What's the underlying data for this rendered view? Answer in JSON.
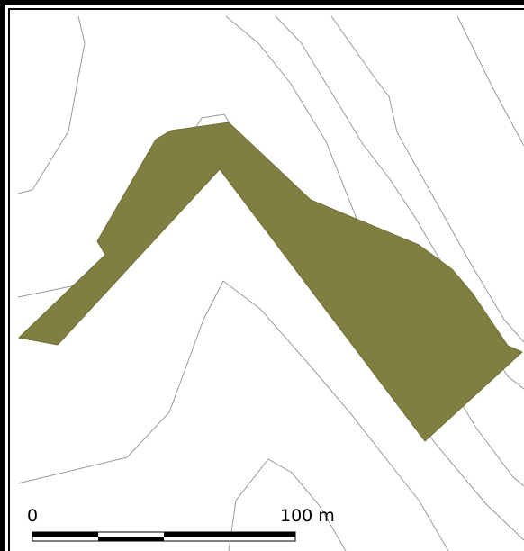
{
  "map": {
    "layers": [
      {
        "name": "contour-lines",
        "color": "#9a9a9a"
      },
      {
        "name": "site-area",
        "color": "#807f42"
      }
    ],
    "frame_color": "#000000",
    "background": "#ffffff"
  },
  "scale_bar": {
    "start_label": "0",
    "end_label": "100 m"
  }
}
